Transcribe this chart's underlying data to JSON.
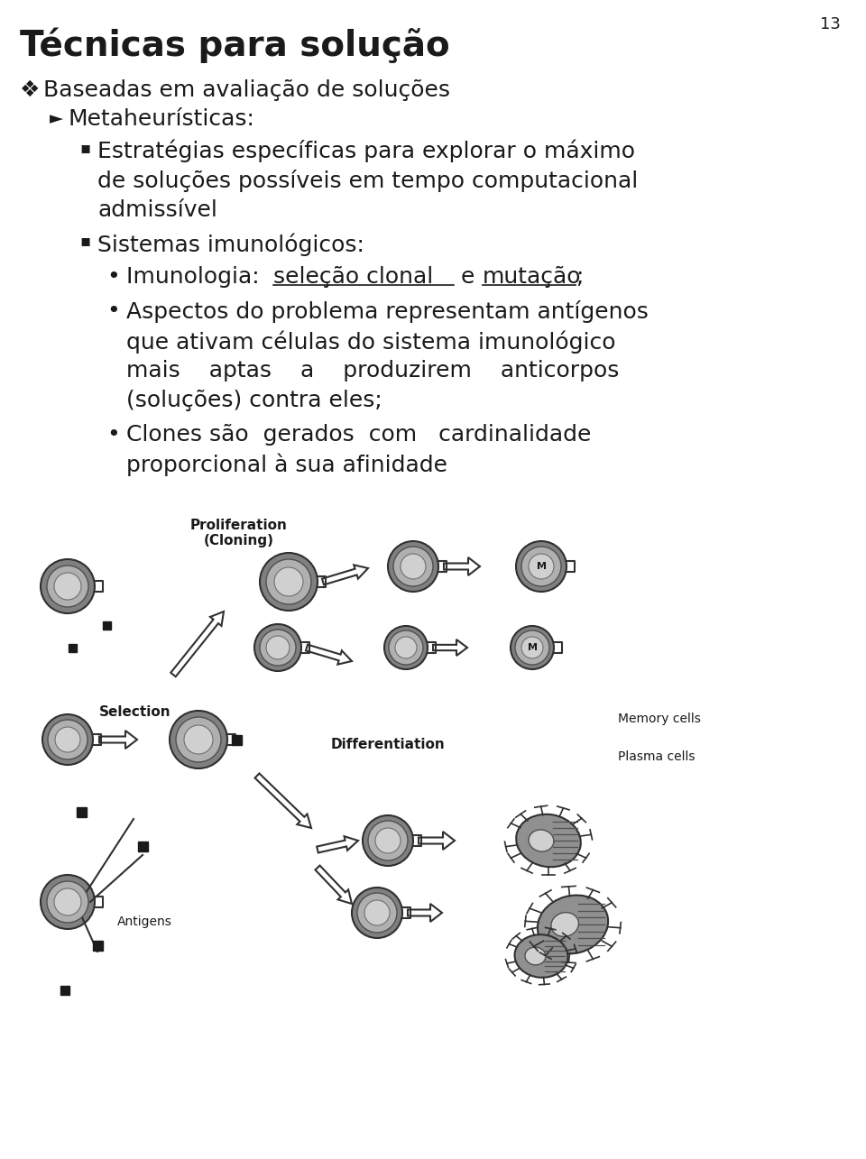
{
  "page_number": "13",
  "background_color": "#ffffff",
  "title": "Técnicas para solução",
  "bullet1_symbol": "❖",
  "bullet1_text": "Baseadas em avaliação de soluções",
  "bullet2_symbol": "►",
  "bullet2_text": "Metaheurísticas:",
  "bullet3b_text": "Sistemas imunológicos:",
  "diagram_label_proliferation": "Proliferation\n(Cloning)",
  "diagram_label_selection": "Selection",
  "diagram_label_differentiation": "Differentiation",
  "diagram_label_memory": "Memory cells",
  "diagram_label_plasma": "Plasma cells",
  "diagram_label_antigens": "Antigens",
  "diagram_label_m": "M",
  "cell_outer_color": "#808080",
  "cell_mid_color": "#b0b0b0",
  "cell_inner_color": "#d0d0d0",
  "antigen_color": "#1a1a1a",
  "arrow_color": "#404040",
  "text_color": "#1a1a1a"
}
